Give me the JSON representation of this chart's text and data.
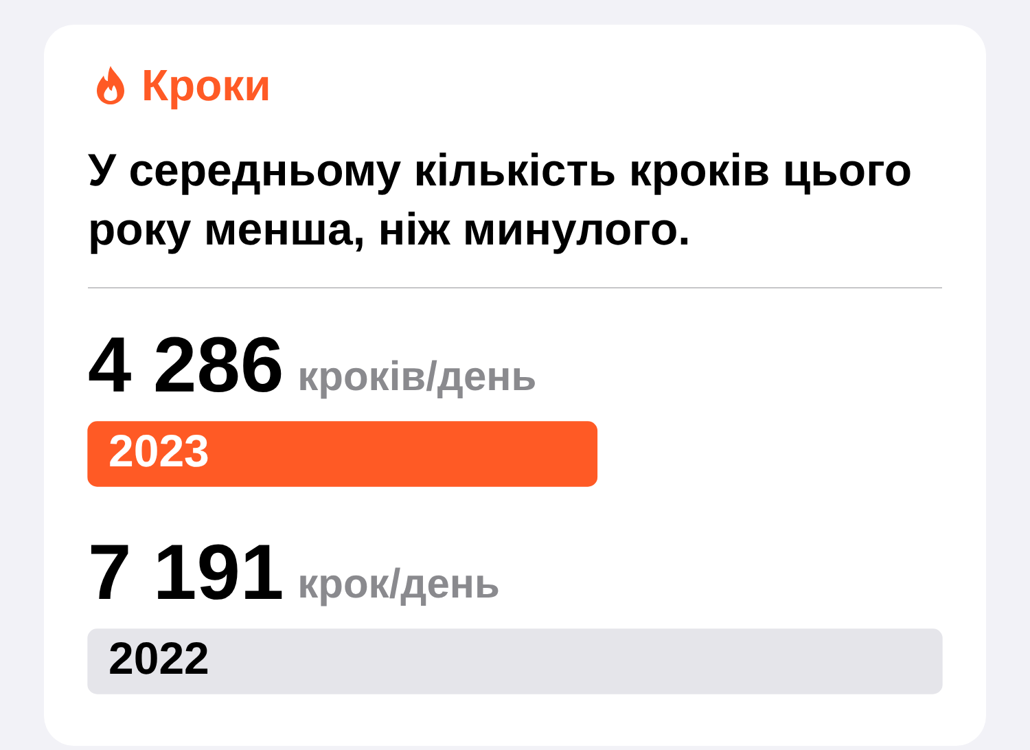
{
  "chart_data": {
    "type": "bar",
    "orientation": "horizontal",
    "title": "Кроки",
    "subtitle": "У середньому кількість кроків цього року менша, ніж минулого.",
    "categories": [
      "2023",
      "2022"
    ],
    "values": [
      4286,
      7191
    ],
    "colors": [
      "#ff5a25",
      "#e5e5ea"
    ],
    "value_labels": [
      "4 286",
      "7 191"
    ],
    "annotations": [
      "кроків/день",
      "крок/день"
    ]
  }
}
